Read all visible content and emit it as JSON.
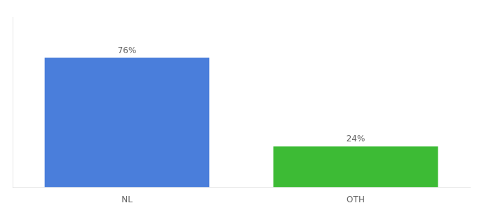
{
  "chart_data": {
    "type": "bar",
    "categories": [
      "NL",
      "OTH"
    ],
    "values": [
      76,
      24
    ],
    "value_labels": [
      "76%",
      "24%"
    ],
    "data_labels": true,
    "colors": [
      "#4a7edb",
      "#3dbb35"
    ],
    "ylim": [
      0,
      100
    ],
    "tick_labels": "x",
    "grid": false
  }
}
